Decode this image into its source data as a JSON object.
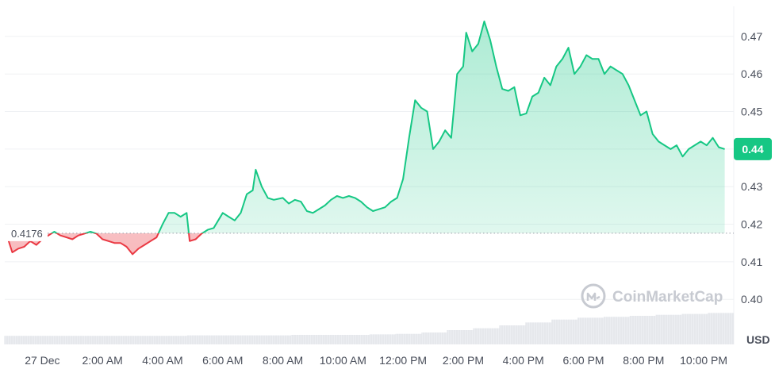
{
  "chart_data": {
    "type": "area",
    "x_unit": "hours since start of day shown",
    "x_tick_labels": [
      "27 Dec",
      "2:00 AM",
      "4:00 AM",
      "6:00 AM",
      "8:00 AM",
      "10:00 AM",
      "12:00 PM",
      "2:00 PM",
      "4:00 PM",
      "6:00 PM",
      "8:00 PM",
      "10:00 PM"
    ],
    "y_tick_labels": [
      "0.40",
      "0.41",
      "0.42",
      "0.43",
      "0.44",
      "0.45",
      "0.46",
      "0.47"
    ],
    "y_unit_label": "USD",
    "ylim": [
      0.388,
      0.478
    ],
    "xlim": [
      -1.25,
      23.0
    ],
    "baseline": 0.4176,
    "baseline_label": "0.4176",
    "current_price": 0.44,
    "current_price_label": "0.44",
    "colors": {
      "up": "#16c784",
      "down": "#ea3943",
      "badge": "#16c784"
    },
    "grid": true,
    "series": [
      {
        "values": [
          [
            -1.2,
            0.4175
          ],
          [
            -1.0,
            0.4125
          ],
          [
            -0.8,
            0.4135
          ],
          [
            -0.6,
            0.414
          ],
          [
            -0.4,
            0.4155
          ],
          [
            -0.2,
            0.4145
          ],
          [
            0.0,
            0.416
          ],
          [
            0.2,
            0.417
          ],
          [
            0.4,
            0.418
          ],
          [
            0.6,
            0.417
          ],
          [
            0.8,
            0.4165
          ],
          [
            1.0,
            0.416
          ],
          [
            1.2,
            0.417
          ],
          [
            1.4,
            0.4175
          ],
          [
            1.6,
            0.418
          ],
          [
            1.8,
            0.4175
          ],
          [
            2.0,
            0.416
          ],
          [
            2.2,
            0.4155
          ],
          [
            2.4,
            0.415
          ],
          [
            2.6,
            0.415
          ],
          [
            2.8,
            0.414
          ],
          [
            3.0,
            0.412
          ],
          [
            3.2,
            0.4135
          ],
          [
            3.4,
            0.4145
          ],
          [
            3.6,
            0.4155
          ],
          [
            3.8,
            0.4165
          ],
          [
            4.0,
            0.42
          ],
          [
            4.2,
            0.423
          ],
          [
            4.4,
            0.423
          ],
          [
            4.6,
            0.422
          ],
          [
            4.8,
            0.423
          ],
          [
            4.9,
            0.4155
          ],
          [
            5.1,
            0.416
          ],
          [
            5.3,
            0.4175
          ],
          [
            5.5,
            0.4185
          ],
          [
            5.7,
            0.419
          ],
          [
            6.0,
            0.423
          ],
          [
            6.2,
            0.422
          ],
          [
            6.4,
            0.421
          ],
          [
            6.6,
            0.423
          ],
          [
            6.8,
            0.428
          ],
          [
            7.0,
            0.429
          ],
          [
            7.1,
            0.4345
          ],
          [
            7.3,
            0.43
          ],
          [
            7.5,
            0.427
          ],
          [
            7.7,
            0.4265
          ],
          [
            8.0,
            0.427
          ],
          [
            8.2,
            0.4255
          ],
          [
            8.4,
            0.4265
          ],
          [
            8.6,
            0.426
          ],
          [
            8.8,
            0.4235
          ],
          [
            9.0,
            0.423
          ],
          [
            9.2,
            0.424
          ],
          [
            9.4,
            0.425
          ],
          [
            9.6,
            0.4265
          ],
          [
            9.8,
            0.4275
          ],
          [
            10.0,
            0.427
          ],
          [
            10.2,
            0.4275
          ],
          [
            10.4,
            0.427
          ],
          [
            10.6,
            0.426
          ],
          [
            10.8,
            0.4245
          ],
          [
            11.0,
            0.4235
          ],
          [
            11.2,
            0.424
          ],
          [
            11.4,
            0.4245
          ],
          [
            11.6,
            0.426
          ],
          [
            11.8,
            0.427
          ],
          [
            12.0,
            0.432
          ],
          [
            12.2,
            0.443
          ],
          [
            12.4,
            0.453
          ],
          [
            12.6,
            0.451
          ],
          [
            12.8,
            0.45
          ],
          [
            13.0,
            0.44
          ],
          [
            13.2,
            0.442
          ],
          [
            13.4,
            0.445
          ],
          [
            13.6,
            0.443
          ],
          [
            13.8,
            0.46
          ],
          [
            14.0,
            0.462
          ],
          [
            14.1,
            0.471
          ],
          [
            14.3,
            0.466
          ],
          [
            14.5,
            0.468
          ],
          [
            14.7,
            0.474
          ],
          [
            14.9,
            0.469
          ],
          [
            15.1,
            0.462
          ],
          [
            15.3,
            0.456
          ],
          [
            15.5,
            0.4555
          ],
          [
            15.7,
            0.4565
          ],
          [
            15.9,
            0.449
          ],
          [
            16.1,
            0.4495
          ],
          [
            16.3,
            0.454
          ],
          [
            16.5,
            0.455
          ],
          [
            16.7,
            0.459
          ],
          [
            16.9,
            0.457
          ],
          [
            17.1,
            0.462
          ],
          [
            17.3,
            0.464
          ],
          [
            17.5,
            0.467
          ],
          [
            17.7,
            0.46
          ],
          [
            17.9,
            0.462
          ],
          [
            18.1,
            0.465
          ],
          [
            18.3,
            0.464
          ],
          [
            18.5,
            0.464
          ],
          [
            18.7,
            0.46
          ],
          [
            18.9,
            0.462
          ],
          [
            19.1,
            0.461
          ],
          [
            19.3,
            0.46
          ],
          [
            19.5,
            0.457
          ],
          [
            19.7,
            0.453
          ],
          [
            19.9,
            0.449
          ],
          [
            20.1,
            0.45
          ],
          [
            20.3,
            0.444
          ],
          [
            20.5,
            0.442
          ],
          [
            20.7,
            0.441
          ],
          [
            20.9,
            0.44
          ],
          [
            21.1,
            0.441
          ],
          [
            21.3,
            0.438
          ],
          [
            21.5,
            0.44
          ],
          [
            21.7,
            0.441
          ],
          [
            21.9,
            0.442
          ],
          [
            22.1,
            0.441
          ],
          [
            22.3,
            0.443
          ],
          [
            22.5,
            0.4405
          ],
          [
            22.7,
            0.44
          ]
        ]
      }
    ],
    "volume": [
      0.18,
      0.18,
      0.18,
      0.18,
      0.18,
      0.18,
      0.18,
      0.19,
      0.19,
      0.19,
      0.19,
      0.2,
      0.2,
      0.2,
      0.21,
      0.22,
      0.25,
      0.3,
      0.34,
      0.4,
      0.46,
      0.52,
      0.56,
      0.58,
      0.6,
      0.62,
      0.64,
      0.66
    ]
  },
  "watermark": {
    "text": "CoinMarketCap",
    "icon": "coinmarketcap-logo-icon"
  }
}
